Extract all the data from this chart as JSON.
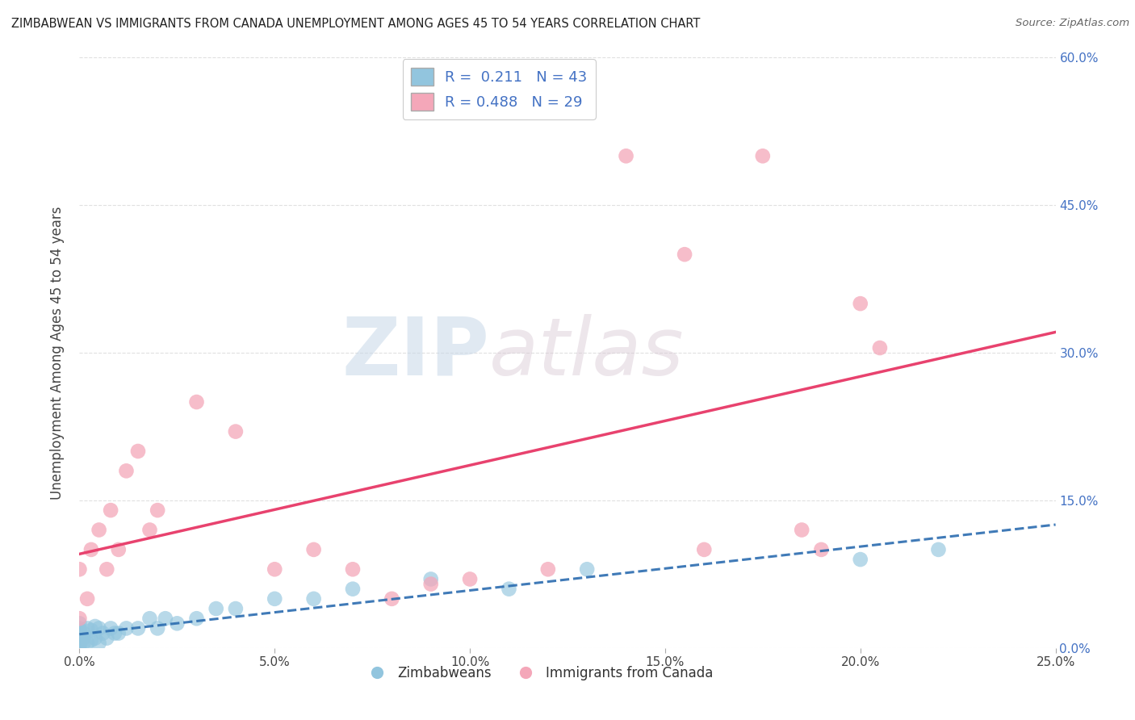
{
  "title": "ZIMBABWEAN VS IMMIGRANTS FROM CANADA UNEMPLOYMENT AMONG AGES 45 TO 54 YEARS CORRELATION CHART",
  "source": "Source: ZipAtlas.com",
  "ylabel": "Unemployment Among Ages 45 to 54 years",
  "xlim": [
    0.0,
    0.25
  ],
  "ylim": [
    0.0,
    0.6
  ],
  "blue_color": "#92c5de",
  "pink_color": "#f4a7b9",
  "line_blue_color": "#2b6cb0",
  "line_pink_color": "#e8426e",
  "R_blue": 0.211,
  "N_blue": 43,
  "R_pink": 0.488,
  "N_pink": 29,
  "blue_scatter_x": [
    0.0,
    0.0,
    0.0,
    0.0,
    0.0,
    0.0,
    0.0,
    0.0,
    0.0,
    0.0,
    0.001,
    0.001,
    0.001,
    0.002,
    0.002,
    0.003,
    0.003,
    0.004,
    0.004,
    0.005,
    0.005,
    0.006,
    0.007,
    0.008,
    0.009,
    0.01,
    0.012,
    0.015,
    0.018,
    0.02,
    0.022,
    0.025,
    0.03,
    0.035,
    0.04,
    0.05,
    0.06,
    0.07,
    0.09,
    0.11,
    0.13,
    0.2,
    0.22
  ],
  "blue_scatter_y": [
    0.0,
    0.003,
    0.005,
    0.008,
    0.01,
    0.012,
    0.015,
    0.018,
    0.02,
    0.025,
    0.005,
    0.01,
    0.015,
    0.005,
    0.02,
    0.008,
    0.018,
    0.01,
    0.022,
    0.005,
    0.02,
    0.015,
    0.01,
    0.02,
    0.015,
    0.015,
    0.02,
    0.02,
    0.03,
    0.02,
    0.03,
    0.025,
    0.03,
    0.04,
    0.04,
    0.05,
    0.05,
    0.06,
    0.07,
    0.06,
    0.08,
    0.09,
    0.1
  ],
  "pink_scatter_x": [
    0.0,
    0.0,
    0.002,
    0.003,
    0.005,
    0.007,
    0.008,
    0.01,
    0.012,
    0.015,
    0.018,
    0.02,
    0.03,
    0.04,
    0.05,
    0.06,
    0.07,
    0.08,
    0.09,
    0.1,
    0.12,
    0.14,
    0.155,
    0.16,
    0.175,
    0.185,
    0.19,
    0.2,
    0.205
  ],
  "pink_scatter_y": [
    0.03,
    0.08,
    0.05,
    0.1,
    0.12,
    0.08,
    0.14,
    0.1,
    0.18,
    0.2,
    0.12,
    0.14,
    0.25,
    0.22,
    0.08,
    0.1,
    0.08,
    0.05,
    0.065,
    0.07,
    0.08,
    0.5,
    0.4,
    0.1,
    0.5,
    0.12,
    0.1,
    0.35,
    0.305
  ],
  "watermark_zip": "ZIP",
  "watermark_atlas": "atlas",
  "background_color": "#ffffff",
  "grid_color": "#dddddd"
}
